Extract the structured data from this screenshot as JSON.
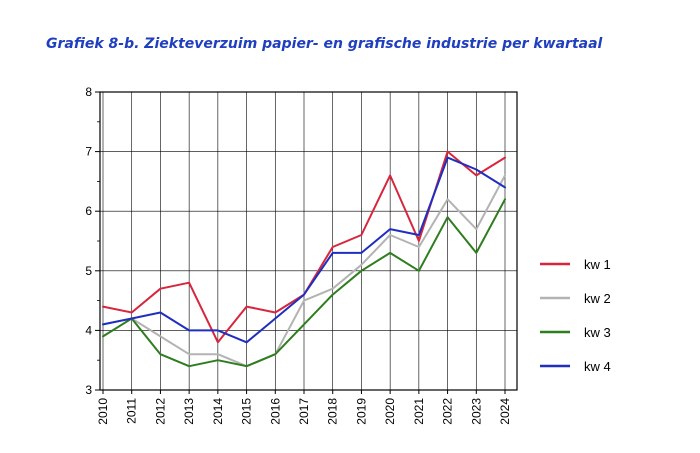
{
  "chart_data": {
    "type": "line",
    "title": "Grafiek 8-b. Ziekteverzuim papier- en grafische industrie per kwartaal",
    "xlabel": "",
    "ylabel": "",
    "categories": [
      "2010",
      "2011",
      "2012",
      "2013",
      "2014",
      "2015",
      "2016",
      "2017",
      "2018",
      "2019",
      "2020",
      "2021",
      "2022",
      "2023",
      "2024"
    ],
    "ylim": [
      3,
      8
    ],
    "yticks": [
      3,
      4,
      5,
      6,
      7,
      8
    ],
    "grid": true,
    "legend_position": "right",
    "series": [
      {
        "name": "kw 1",
        "color": "#d7263d",
        "values": [
          4.4,
          4.3,
          4.7,
          4.8,
          3.8,
          4.4,
          4.3,
          4.6,
          5.4,
          5.6,
          6.6,
          5.5,
          7.0,
          6.6,
          6.9
        ]
      },
      {
        "name": "kw 2",
        "color": "#b3b3b3",
        "values": [
          4.1,
          4.2,
          3.9,
          3.6,
          3.6,
          3.4,
          3.6,
          4.5,
          4.7,
          5.1,
          5.6,
          5.4,
          6.2,
          5.7,
          6.6
        ]
      },
      {
        "name": "kw 3",
        "color": "#2e7d1e",
        "values": [
          3.9,
          4.2,
          3.6,
          3.4,
          3.5,
          3.4,
          3.6,
          4.1,
          4.6,
          5.0,
          5.3,
          5.0,
          5.9,
          5.3,
          6.2
        ]
      },
      {
        "name": "kw 4",
        "color": "#1f2fbf",
        "values": [
          4.1,
          4.2,
          4.3,
          4.0,
          4.0,
          3.8,
          4.2,
          4.6,
          5.3,
          5.3,
          5.7,
          5.6,
          6.9,
          6.7,
          6.4
        ]
      }
    ]
  }
}
